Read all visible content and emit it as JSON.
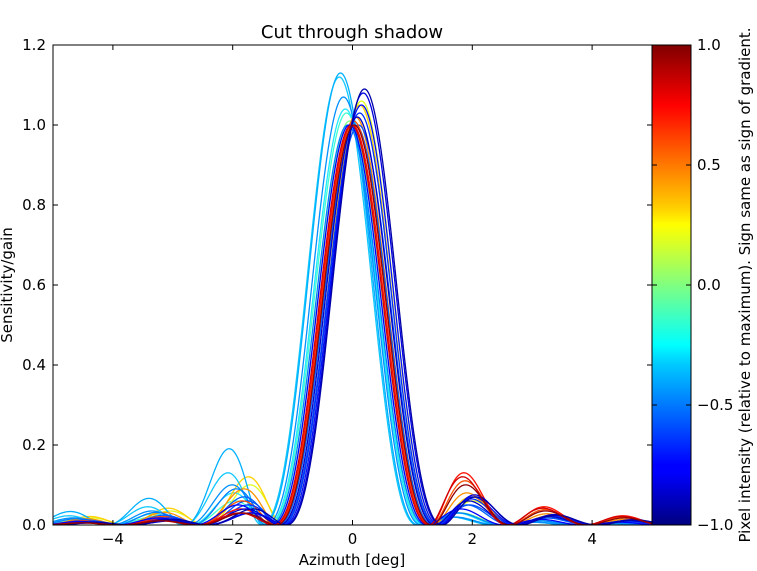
{
  "chart_data": {
    "type": "line",
    "title": "Cut through shadow",
    "xlabel": "Azimuth [deg]",
    "ylabel": "Sensitivity/gain",
    "xlim": [
      -5,
      5
    ],
    "ylim": [
      0,
      1.2
    ],
    "xticks": [
      -4,
      -2,
      0,
      2,
      4
    ],
    "yticks": [
      0.0,
      0.2,
      0.4,
      0.6,
      0.8,
      1.0,
      1.2
    ],
    "xtick_labels": [
      "−4",
      "−2",
      "0",
      "2",
      "4"
    ],
    "ytick_labels": [
      "0.0",
      "0.2",
      "0.4",
      "0.6",
      "0.8",
      "1.0",
      "1.2"
    ],
    "grid": false,
    "colorbar": {
      "label": "Pixel intensity (relative to maximum). Sign same as sign of gradient.",
      "range": [
        -1,
        1
      ],
      "ticks": [
        -1.0,
        -0.5,
        0.0,
        0.5,
        1.0
      ],
      "tick_labels": [
        "−1.0",
        "−0.5",
        "0.0",
        "0.5",
        "1.0"
      ],
      "colormap": "jet"
    },
    "series": [
      {
        "value": -0.95,
        "shift": 0.2,
        "peak": 1.09,
        "sidelobe_left": 0.04,
        "sidelobe_right": 0.07,
        "color": "#0000a8"
      },
      {
        "value": -0.85,
        "shift": 0.18,
        "peak": 1.08,
        "sidelobe_left": 0.03,
        "sidelobe_right": 0.075,
        "color": "#0000e0"
      },
      {
        "value": -0.75,
        "shift": 0.15,
        "peak": 1.05,
        "sidelobe_left": 0.03,
        "sidelobe_right": 0.07,
        "color": "#0010ff"
      },
      {
        "value": -0.7,
        "shift": 0.12,
        "peak": 1.03,
        "sidelobe_left": 0.05,
        "sidelobe_right": 0.065,
        "color": "#0030ff"
      },
      {
        "value": -0.9,
        "shift": 0.08,
        "peak": 1.02,
        "sidelobe_left": 0.04,
        "sidelobe_right": 0.06,
        "color": "#0000c8"
      },
      {
        "value": -0.65,
        "shift": 0.1,
        "peak": 1.0,
        "sidelobe_left": 0.06,
        "sidelobe_right": 0.05,
        "color": "#0050ff"
      },
      {
        "value": -0.45,
        "shift": -0.2,
        "peak": 1.13,
        "sidelobe_left": 0.19,
        "sidelobe_right": 0.02,
        "color": "#00b0ff"
      },
      {
        "value": -0.4,
        "shift": -0.22,
        "peak": 1.12,
        "sidelobe_left": 0.13,
        "sidelobe_right": 0.02,
        "color": "#10c8ff"
      },
      {
        "value": -0.5,
        "shift": -0.15,
        "peak": 1.07,
        "sidelobe_left": 0.1,
        "sidelobe_right": 0.02,
        "color": "#0090ff"
      },
      {
        "value": -0.3,
        "shift": -0.12,
        "peak": 1.04,
        "sidelobe_left": 0.08,
        "sidelobe_right": 0.03,
        "color": "#20e8ff"
      },
      {
        "value": -0.15,
        "shift": -0.1,
        "peak": 1.03,
        "sidelobe_left": 0.06,
        "sidelobe_right": 0.03,
        "color": "#40ffd0"
      },
      {
        "value": 0.0,
        "shift": -0.05,
        "peak": 1.01,
        "sidelobe_left": 0.05,
        "sidelobe_right": 0.03,
        "color": "#80ff80"
      },
      {
        "value": 0.2,
        "shift": 0.15,
        "peak": 1.06,
        "sidelobe_left": 0.1,
        "sidelobe_right": 0.06,
        "color": "#e0ff20"
      },
      {
        "value": 0.35,
        "shift": 0.12,
        "peak": 1.05,
        "sidelobe_left": 0.12,
        "sidelobe_right": 0.07,
        "color": "#ffd000"
      },
      {
        "value": 0.5,
        "shift": 0.05,
        "peak": 1.02,
        "sidelobe_left": 0.09,
        "sidelobe_right": 0.08,
        "color": "#ff9000"
      },
      {
        "value": 0.65,
        "shift": 0.02,
        "peak": 1.01,
        "sidelobe_left": 0.06,
        "sidelobe_right": 0.11,
        "color": "#ff5000"
      },
      {
        "value": 0.8,
        "shift": 0.0,
        "peak": 1.0,
        "sidelobe_left": 0.04,
        "sidelobe_right": 0.13,
        "color": "#ff1000"
      },
      {
        "value": 0.9,
        "shift": -0.02,
        "peak": 1.0,
        "sidelobe_left": 0.03,
        "sidelobe_right": 0.12,
        "color": "#d00000"
      },
      {
        "value": 0.97,
        "shift": 0.03,
        "peak": 1.0,
        "sidelobe_left": 0.03,
        "sidelobe_right": 0.1,
        "color": "#900000"
      },
      {
        "value": -0.8,
        "shift": -0.05,
        "peak": 1.0,
        "sidelobe_left": 0.05,
        "sidelobe_right": 0.04,
        "color": "#0000ff"
      },
      {
        "value": -0.6,
        "shift": 0.05,
        "peak": 1.0,
        "sidelobe_left": 0.07,
        "sidelobe_right": 0.05,
        "color": "#0060ff"
      },
      {
        "value": -0.55,
        "shift": -0.08,
        "peak": 1.0,
        "sidelobe_left": 0.09,
        "sidelobe_right": 0.03,
        "color": "#0080ff"
      }
    ]
  }
}
